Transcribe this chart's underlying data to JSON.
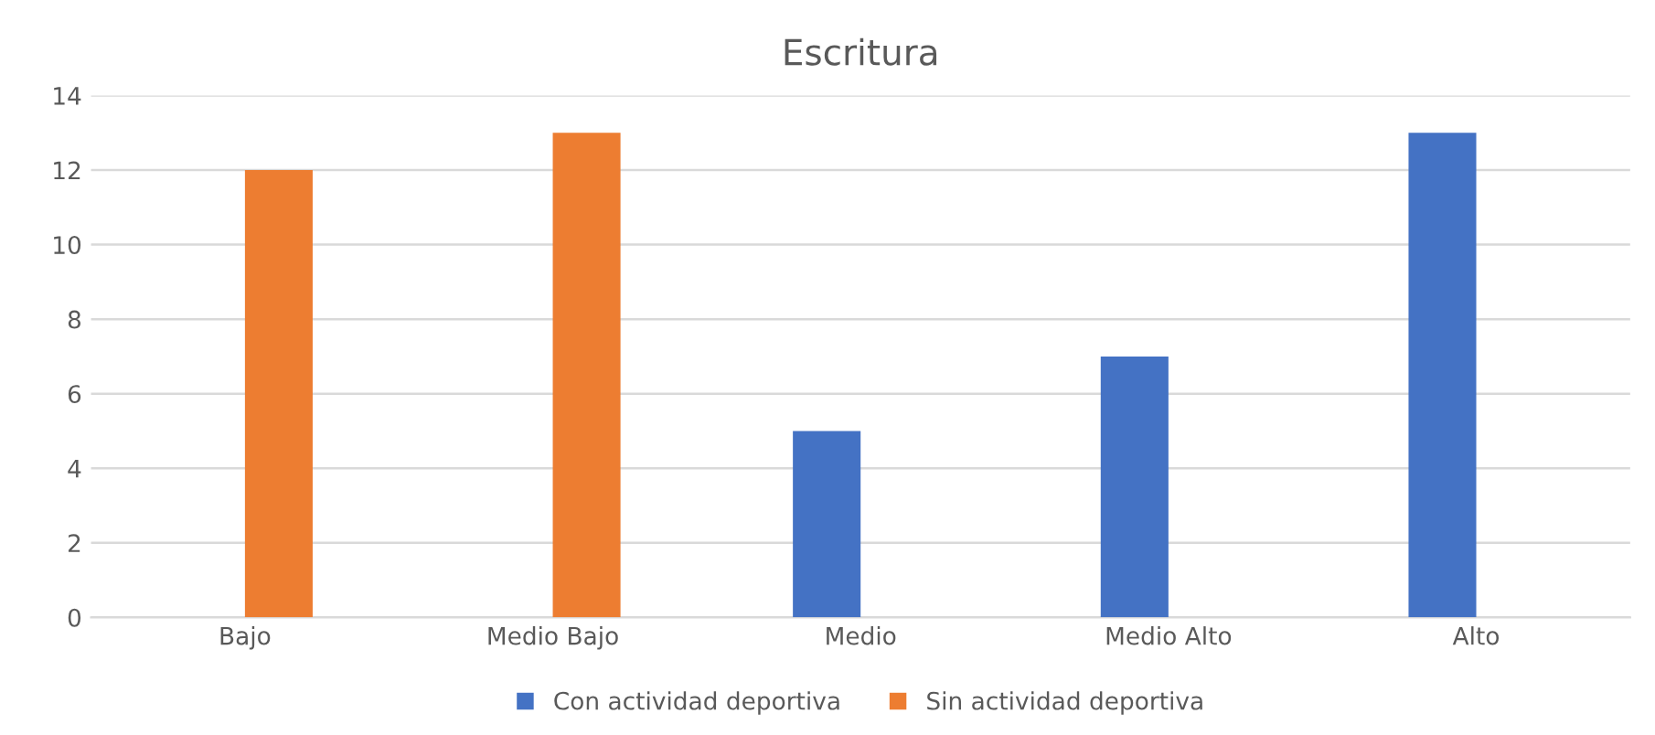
{
  "chart_data": {
    "type": "bar",
    "title": "Escritura",
    "categories": [
      "Bajo",
      "Medio Bajo",
      "Medio",
      "Medio Alto",
      "Alto"
    ],
    "series": [
      {
        "name": "Con actividad deportiva",
        "color": "#4472c4",
        "values": [
          0,
          0,
          5,
          7,
          13
        ]
      },
      {
        "name": "Sin actividad deportiva",
        "color": "#ed7d31",
        "values": [
          12,
          13,
          0,
          0,
          0
        ]
      }
    ],
    "ylim": [
      0,
      14
    ],
    "yticks": [
      0,
      2,
      4,
      6,
      8,
      10,
      12,
      14
    ],
    "grid": "y",
    "legend": "bottom"
  }
}
